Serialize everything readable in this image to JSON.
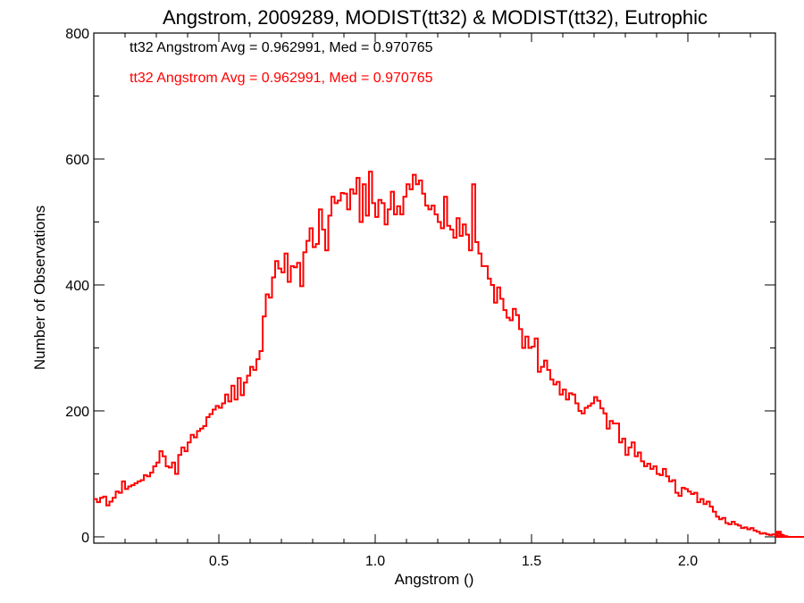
{
  "chart_data": {
    "type": "histogram",
    "title": "Angstrom, 2009289, MODIST(tt32) & MODIST(tt32), Eutrophic",
    "xlabel": "Angstrom ()",
    "ylabel": "Number of Observations",
    "xlim": [
      0.1,
      2.28
    ],
    "ylim": [
      -10,
      800
    ],
    "xticks": [
      0.5,
      1.0,
      1.5,
      2.0
    ],
    "xtick_labels": [
      "0.5",
      "1.0",
      "1.5",
      "2.0"
    ],
    "yticks": [
      0,
      200,
      400,
      600,
      800
    ],
    "ytick_labels": [
      "0",
      "200",
      "400",
      "600",
      "800"
    ],
    "grid": false,
    "bin_width": 0.01,
    "x_start": 0.1,
    "annotations": [
      {
        "text": "tt32 Angstrom Avg = 0.962991, Med = 0.970765",
        "color": "#000000"
      },
      {
        "text": "tt32 Angstrom Avg = 0.962991, Med = 0.970765",
        "color": "#ff0000"
      }
    ],
    "series": [
      {
        "color": "#ff0000",
        "values": [
          60,
          55,
          62,
          64,
          50,
          56,
          62,
          72,
          70,
          88,
          76,
          80,
          82,
          85,
          88,
          90,
          98,
          96,
          102,
          112,
          118,
          136,
          128,
          112,
          110,
          118,
          100,
          130,
          142,
          136,
          150,
          162,
          158,
          168,
          172,
          176,
          190,
          195,
          202,
          208,
          205,
          212,
          226,
          215,
          240,
          218,
          252,
          225,
          245,
          256,
          270,
          265,
          282,
          295,
          350,
          385,
          380,
          412,
          438,
          426,
          420,
          450,
          405,
          430,
          428,
          435,
          398,
          452,
          470,
          490,
          460,
          465,
          520,
          488,
          455,
          510,
          540,
          530,
          534,
          546,
          545,
          520,
          552,
          545,
          570,
          500,
          560,
          510,
          580,
          530,
          508,
          535,
          530,
          496,
          520,
          548,
          512,
          525,
          512,
          540,
          560,
          552,
          575,
          560,
          566,
          545,
          526,
          520,
          526,
          512,
          500,
          490,
          540,
          494,
          488,
          475,
          506,
          478,
          496,
          480,
          455,
          560,
          468,
          450,
          430,
          430,
          410,
          400,
          372,
          396,
          378,
          360,
          348,
          344,
          362,
          352,
          330,
          300,
          318,
          300,
          302,
          315,
          262,
          270,
          280,
          265,
          250,
          242,
          246,
          226,
          234,
          218,
          228,
          226,
          212,
          200,
          196,
          205,
          208,
          212,
          222,
          216,
          204,
          196,
          172,
          184,
          180,
          180,
          150,
          156,
          130,
          142,
          150,
          128,
          134,
          120,
          112,
          116,
          108,
          112,
          100,
          98,
          108,
          96,
          88,
          90,
          70,
          65,
          78,
          76,
          72,
          68,
          70,
          55,
          60,
          52,
          56,
          48,
          40,
          32,
          28,
          30,
          22,
          20,
          24,
          20,
          18,
          14,
          15,
          12,
          14,
          10,
          8,
          5,
          6,
          4,
          3,
          4,
          2,
          3,
          8,
          2,
          1,
          0,
          0,
          0,
          0,
          0,
          0,
          0,
          0,
          0,
          0
        ]
      }
    ]
  }
}
